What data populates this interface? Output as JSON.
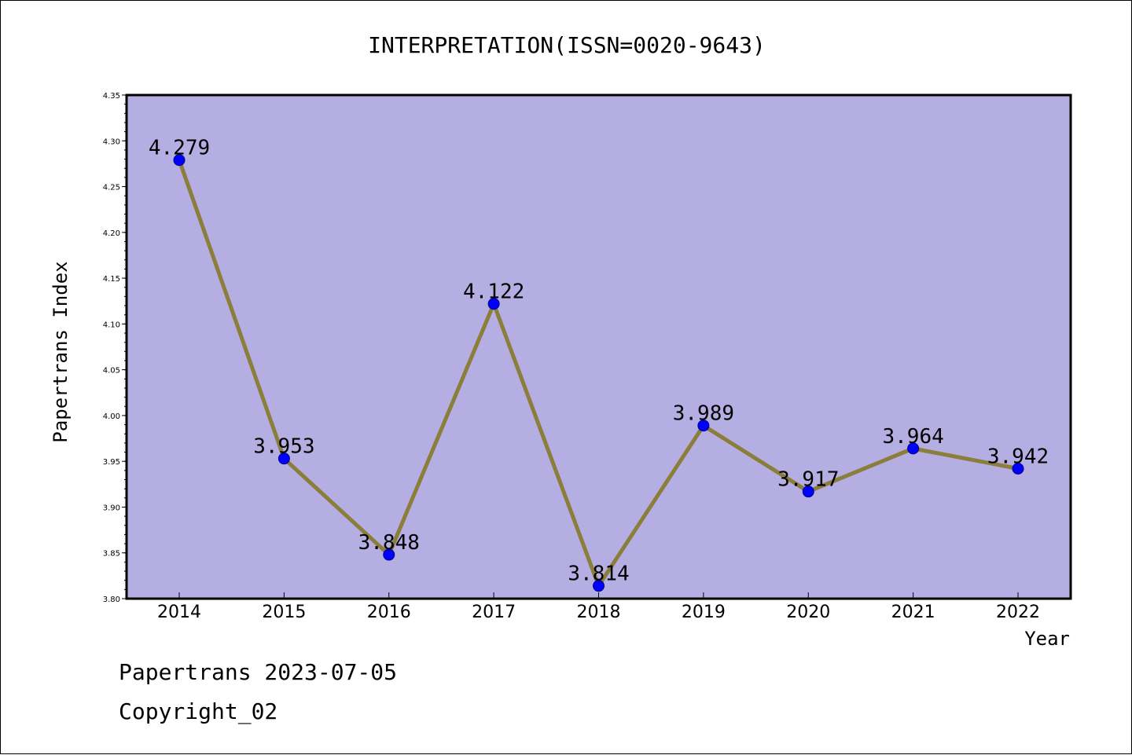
{
  "chart_data": {
    "type": "line",
    "title": "INTERPRETATION(ISSN=0020-9643)",
    "xlabel": "Year",
    "ylabel": "Papertrans Index",
    "categories": [
      "2014",
      "2015",
      "2016",
      "2017",
      "2018",
      "2019",
      "2020",
      "2021",
      "2022"
    ],
    "values": [
      4.279,
      3.953,
      3.848,
      4.122,
      3.814,
      3.989,
      3.917,
      3.964,
      3.942
    ],
    "data_labels": [
      "4.279",
      "3.953",
      "3.848",
      "4.122",
      "3.814",
      "3.989",
      "3.917",
      "3.964",
      "3.942"
    ],
    "ylim": [
      3.8,
      4.35
    ],
    "yticks": [
      "3.80",
      "3.85",
      "3.90",
      "3.95",
      "4.00",
      "4.05",
      "4.10",
      "4.15",
      "4.20",
      "4.25",
      "4.30",
      "4.35"
    ],
    "grid": false,
    "legend": "none",
    "colors": {
      "plot_background": "#b5aee2",
      "line": "#8b7d3a",
      "marker": "#0000ff",
      "marker_edge": "#00008b"
    }
  },
  "footer": {
    "line1": "Papertrans 2023-07-05",
    "line2": "Copyright_02"
  }
}
